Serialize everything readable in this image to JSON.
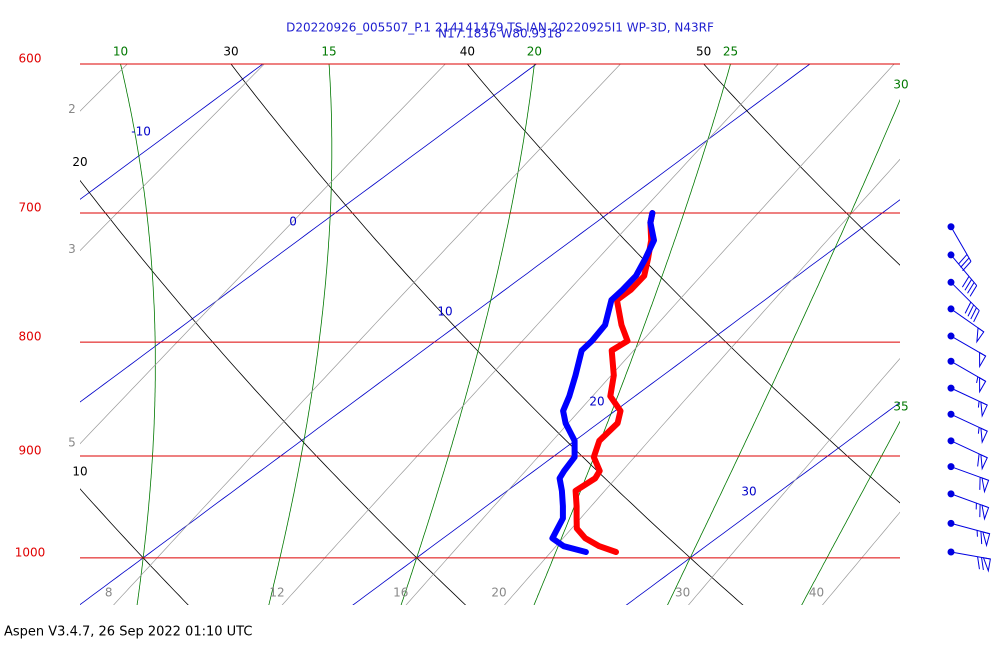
{
  "chart_data": {
    "type": "skewt",
    "title": "D20220926_005507_P.1 214141479 TS IAN 20220925I1 WP-3D, N43RF",
    "subtitle": "N17.1836 W80.9318",
    "footer": "Aspen V3.4.7, 26 Sep 2022  01:10 UTC",
    "log_y": true,
    "ylim": [
      1050,
      600
    ],
    "yticks": [
      600,
      700,
      800,
      900,
      1000
    ],
    "isotherms": [
      -10,
      0,
      10,
      20,
      30
    ],
    "dry_adiabats": [
      10,
      20,
      30,
      40,
      50
    ],
    "moist_adiabats": [
      10,
      15,
      20,
      25,
      30,
      35
    ],
    "mixing_ratios": [
      2,
      3,
      5,
      8,
      12,
      16,
      20,
      30,
      40
    ],
    "pressure": [
      994,
      988,
      980,
      970,
      960,
      948,
      933,
      921,
      914,
      901,
      886,
      870,
      859,
      846,
      828,
      807,
      799,
      786,
      766,
      758,
      747,
      734,
      720,
      707,
      700
    ],
    "series": [
      {
        "color": "#ff0000",
        "values": [
          27.0,
          26.1,
          25.2,
          24.4,
          23.9,
          23.3,
          22.5,
          22.6,
          22.4,
          21.5,
          20.9,
          20.7,
          20.2,
          19.1,
          18.2,
          16.9,
          17.0,
          16.0,
          14.6,
          14.6,
          14.4,
          13.7,
          12.9,
          12.0,
          11.6
        ]
      },
      {
        "color": "#0000ff",
        "values": [
          25.9,
          24.8,
          24.0,
          23.7,
          23.4,
          22.8,
          22.0,
          21.3,
          21.1,
          20.8,
          20.0,
          18.8,
          18.1,
          17.6,
          16.8,
          15.8,
          15.7,
          15.4,
          14.4,
          14.3,
          14.1,
          13.6,
          13.0,
          12.0,
          11.6
        ]
      }
    ],
    "winds": {
      "pressure": [
        710,
        731,
        752,
        773,
        795,
        816,
        839,
        862,
        886,
        910,
        936,
        965,
        994
      ],
      "speed": [
        30,
        40,
        40,
        50,
        50,
        55,
        55,
        55,
        60,
        60,
        65,
        65,
        70
      ],
      "direction": [
        150,
        140,
        135,
        125,
        120,
        120,
        115,
        115,
        115,
        110,
        110,
        105,
        100
      ]
    }
  }
}
